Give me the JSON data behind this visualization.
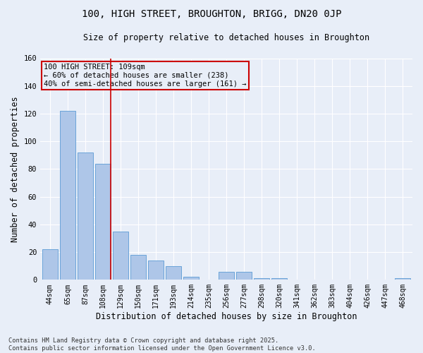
{
  "title": "100, HIGH STREET, BROUGHTON, BRIGG, DN20 0JP",
  "subtitle": "Size of property relative to detached houses in Broughton",
  "xlabel": "Distribution of detached houses by size in Broughton",
  "ylabel": "Number of detached properties",
  "categories": [
    "44sqm",
    "65sqm",
    "87sqm",
    "108sqm",
    "129sqm",
    "150sqm",
    "171sqm",
    "193sqm",
    "214sqm",
    "235sqm",
    "256sqm",
    "277sqm",
    "298sqm",
    "320sqm",
    "341sqm",
    "362sqm",
    "383sqm",
    "404sqm",
    "426sqm",
    "447sqm",
    "468sqm"
  ],
  "values": [
    22,
    122,
    92,
    84,
    35,
    18,
    14,
    10,
    2,
    0,
    6,
    6,
    1,
    1,
    0,
    0,
    0,
    0,
    0,
    0,
    1
  ],
  "bar_color": "#aec6e8",
  "bar_edgecolor": "#5b9bd5",
  "bg_color": "#e8eef8",
  "grid_color": "#ffffff",
  "vline_x_idx": 3,
  "vline_color": "#cc0000",
  "annotation_text": "100 HIGH STREET: 109sqm\n← 60% of detached houses are smaller (238)\n40% of semi-detached houses are larger (161) →",
  "annotation_box_color": "#cc0000",
  "footer": "Contains HM Land Registry data © Crown copyright and database right 2025.\nContains public sector information licensed under the Open Government Licence v3.0.",
  "ylim": [
    0,
    160
  ],
  "yticks": [
    0,
    20,
    40,
    60,
    80,
    100,
    120,
    140,
    160
  ]
}
